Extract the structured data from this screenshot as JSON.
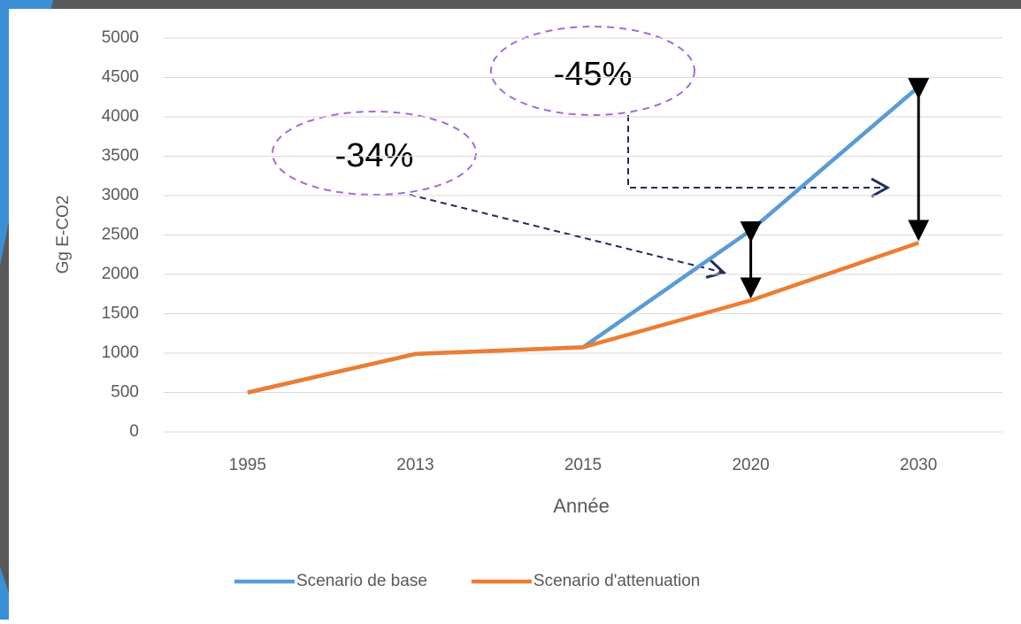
{
  "chart_data": {
    "type": "line",
    "categories": [
      "1995",
      "2013",
      "2015",
      "2020",
      "2030"
    ],
    "series": [
      {
        "name": "Scenario de base",
        "color": "#5b9bd5",
        "values": [
          500,
          990,
          1075,
          2560,
          4380
        ]
      },
      {
        "name": "Scenario d'attenuation",
        "color": "#ed7d31",
        "values": [
          500,
          990,
          1075,
          1670,
          2400
        ]
      }
    ],
    "ylim": [
      0,
      5000
    ],
    "yticks": [
      0,
      500,
      1000,
      1500,
      2000,
      2500,
      3000,
      3500,
      4000,
      4500,
      5000
    ],
    "grid": true,
    "ylabel": "Gg E-CO2",
    "xlabel": "Année",
    "legend": "bottom",
    "annotations": [
      "-45%",
      "-34%"
    ]
  }
}
